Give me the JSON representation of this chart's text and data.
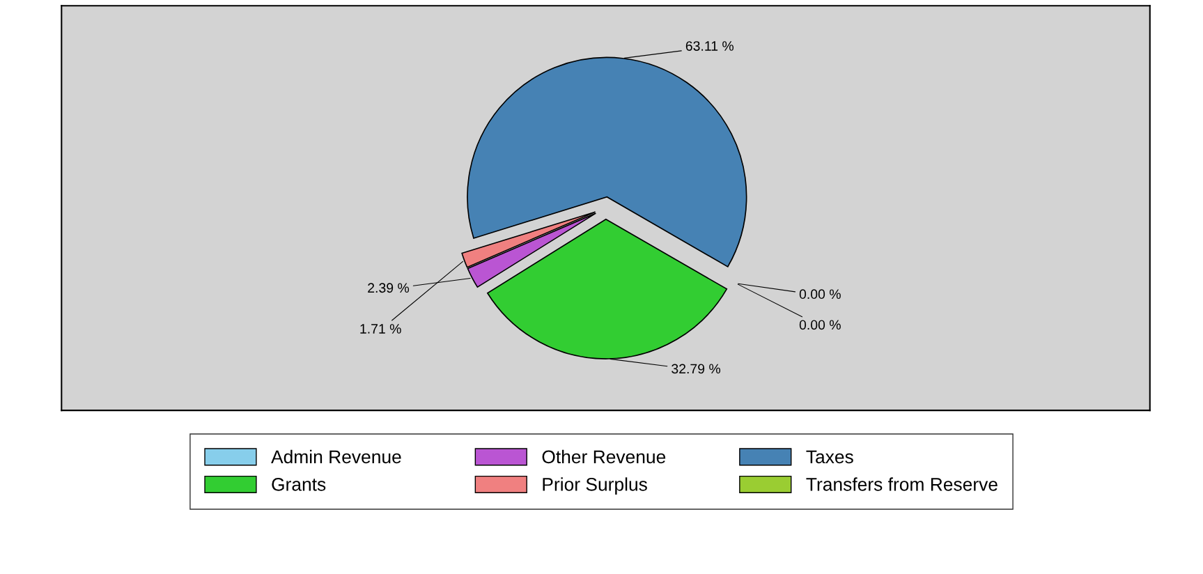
{
  "chart_data": {
    "type": "pie",
    "categories": [
      "Admin Revenue",
      "Grants",
      "Other Revenue",
      "Prior Surplus",
      "Taxes",
      "Transfers from Reserve"
    ],
    "values": [
      0,
      32.79,
      2.39,
      1.71,
      63.11,
      0
    ],
    "colors": [
      "#87ceeb",
      "#32cd32",
      "#ba55d3",
      "#f08080",
      "#4682b4",
      "#9acd32"
    ],
    "value_labels": [
      "0.00 %",
      "32.79 %",
      "2.39 %",
      "1.71 %",
      "63.11 %",
      "0.00 %"
    ],
    "legend": "bottom"
  }
}
